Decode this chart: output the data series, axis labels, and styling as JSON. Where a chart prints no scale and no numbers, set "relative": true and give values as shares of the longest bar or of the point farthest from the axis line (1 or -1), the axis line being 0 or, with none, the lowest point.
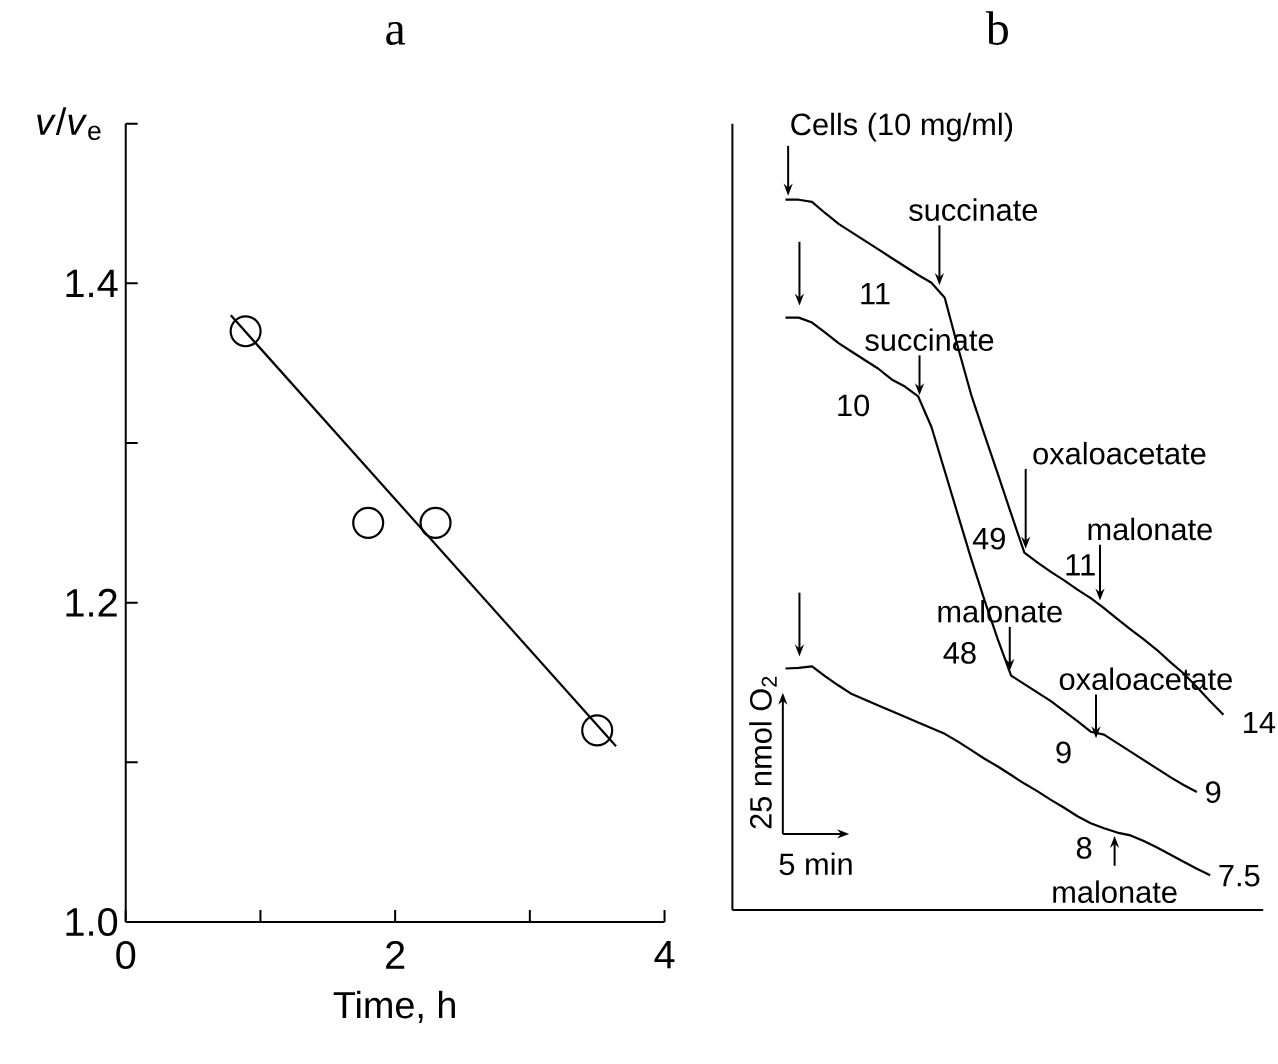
{
  "chart_data": [
    {
      "type": "scatter",
      "title": "a",
      "xlabel": "Time, h",
      "ylabel": "*v*/*v*$_{e}$",
      "xlim": [
        0,
        4
      ],
      "ylim": [
        1.0,
        1.5
      ],
      "xticks": [
        0,
        {
          "value": 1,
          "label": null
        },
        2,
        {
          "value": 3,
          "label": null
        },
        4
      ],
      "yticks": [
        {
          "value": 1.0,
          "label": "1.0"
        },
        {
          "value": 1.1,
          "label": null
        },
        1.2,
        {
          "value": 1.3,
          "label": null
        },
        1.4,
        {
          "value": 1.5,
          "label": null
        }
      ],
      "series": [
        {
          "type": "scatter",
          "marker": "circle",
          "color": "#000000",
          "x": [
            0.89,
            1.8,
            2.3,
            3.5
          ],
          "values": [
            1.37,
            1.25,
            1.25,
            1.12
          ]
        },
        {
          "type": "line",
          "color": "#000000",
          "x": [
            0.78,
            3.64
          ],
          "values": [
            1.38,
            1.11
          ]
        }
      ]
    },
    {
      "type": "line",
      "title": "b",
      "relative": true,
      "categories": [
        null,
        null,
        null,
        null,
        null,
        null,
        null,
        null,
        null,
        null,
        null,
        null,
        null,
        null,
        null,
        null,
        null,
        null,
        null,
        null,
        null,
        null,
        null,
        null,
        null,
        null,
        null,
        null,
        null,
        null,
        null,
        null,
        null,
        null,
        null,
        null,
        null,
        null,
        null,
        null,
        null
      ],
      "series": [
        {
          "color": "#000000",
          "values": [
            null,
            null,
            null,
            null,
            1.0,
            1.0,
            0.997,
            0.981,
            0.966,
            0.954,
            0.942,
            0.93,
            0.918,
            0.906,
            0.894,
            0.883,
            0.862,
            0.792,
            0.725,
            0.669,
            0.614,
            0.558,
            0.503,
            0.489,
            0.476,
            0.464,
            0.451,
            0.439,
            0.425,
            0.41,
            0.395,
            0.381,
            0.366,
            0.349,
            0.333,
            0.314,
            0.294,
            0.275,
            null,
            null,
            null
          ]
        },
        {
          "color": "#000000",
          "values": [
            null,
            null,
            null,
            null,
            0.834,
            0.834,
            0.827,
            0.813,
            0.798,
            0.786,
            0.774,
            0.762,
            0.747,
            0.737,
            0.723,
            0.68,
            0.618,
            0.556,
            0.494,
            0.436,
            0.381,
            0.33,
            0.318,
            0.306,
            0.294,
            0.28,
            0.266,
            0.251,
            0.247,
            0.235,
            0.223,
            0.211,
            0.199,
            0.187,
            0.176,
            0.166,
            null,
            null,
            null,
            null,
            null
          ]
        },
        {
          "color": "#000000",
          "values": [
            null,
            null,
            null,
            null,
            0.34,
            0.341,
            0.343,
            0.329,
            0.316,
            0.304,
            0.296,
            0.288,
            0.28,
            0.272,
            0.264,
            0.256,
            0.248,
            0.237,
            0.225,
            0.213,
            0.202,
            0.19,
            0.178,
            0.167,
            0.155,
            0.144,
            0.132,
            0.122,
            0.115,
            0.109,
            0.105,
            0.097,
            0.088,
            0.078,
            0.068,
            0.058,
            0.049,
            null,
            null,
            null,
            null
          ]
        }
      ],
      "annotations": [
        "Cells (10 mg/ml)",
        "succinate",
        "11",
        "succinate",
        "10",
        "oxaloacetate",
        "49",
        "malonate",
        "11",
        "malonate",
        "48",
        "oxaloacetate",
        "9",
        "14",
        "9",
        "8",
        "malonate",
        "7.5",
        "25 nmol O$_{2}$",
        "5 min"
      ]
    }
  ]
}
